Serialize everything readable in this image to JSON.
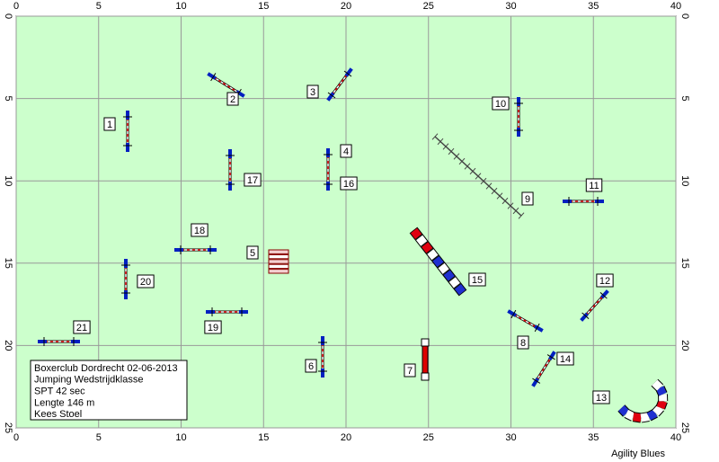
{
  "axes": {
    "x_ticks": [
      0,
      5,
      10,
      15,
      20,
      25,
      30,
      35,
      40
    ],
    "y_ticks": [
      0,
      5,
      10,
      15,
      20,
      25
    ]
  },
  "obstacles": [
    "1",
    "2",
    "3",
    "4",
    "5",
    "6",
    "7",
    "8",
    "9",
    "10",
    "11",
    "12",
    "13",
    "14",
    "15",
    "16",
    "17",
    "18",
    "19",
    "20",
    "21"
  ],
  "info": [
    "Boxerclub Dordrecht 02-06-2013",
    "Jumping Wedstrijdklasse",
    "SPT 42 sec",
    "Lengte 146 m",
    "Kees Stoel"
  ],
  "footer": "Agility Blues"
}
